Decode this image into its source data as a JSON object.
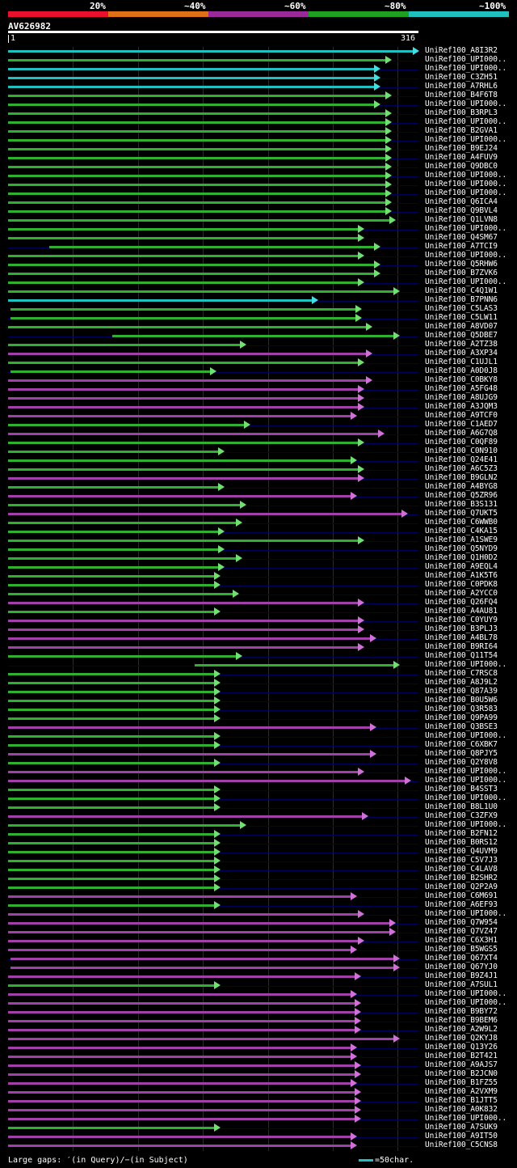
{
  "legend": {
    "segments": [
      {
        "label": "20%",
        "color": "#e8102c"
      },
      {
        "label": "~40%",
        "color": "#e07018"
      },
      {
        "label": "~60%",
        "color": "#9a2a9a"
      },
      {
        "label": "~80%",
        "color": "#20a020"
      },
      {
        "label": "~100%",
        "color": "#20c0c0"
      }
    ]
  },
  "query": {
    "title": "AV626982",
    "start": "1",
    "end": "316"
  },
  "footer": {
    "gaps": "Large gaps: ′(in Query)/−(in Subject)",
    "scale": "=50char."
  },
  "hits": [
    {
      "name": "UniRef100_A8I3R2",
      "start": 0,
      "end": 316,
      "color": "cyan"
    },
    {
      "name": "UniRef100_UPI000..",
      "start": 0,
      "end": 295,
      "color": "green"
    },
    {
      "name": "UniRef100_UPI000..",
      "start": 0,
      "end": 286,
      "color": "cyan"
    },
    {
      "name": "UniRef100_C3ZH51",
      "start": 0,
      "end": 286,
      "color": "cyan"
    },
    {
      "name": "UniRef100_A7RHL6",
      "start": 0,
      "end": 286,
      "color": "cyan"
    },
    {
      "name": "UniRef100_B4F6T8",
      "start": 0,
      "end": 295,
      "color": "green"
    },
    {
      "name": "UniRef100_UPI000..",
      "start": 0,
      "end": 286,
      "color": "green"
    },
    {
      "name": "UniRef100_B3RPL3",
      "start": 0,
      "end": 295,
      "color": "green"
    },
    {
      "name": "UniRef100_UPI000..",
      "start": 0,
      "end": 295,
      "color": "green"
    },
    {
      "name": "UniRef100_B2GVA1",
      "start": 0,
      "end": 295,
      "color": "green"
    },
    {
      "name": "UniRef100_UPI000..",
      "start": 0,
      "end": 295,
      "color": "green"
    },
    {
      "name": "UniRef100_B9EJ24",
      "start": 0,
      "end": 295,
      "color": "green"
    },
    {
      "name": "UniRef100_A4FUV9",
      "start": 0,
      "end": 295,
      "color": "green"
    },
    {
      "name": "UniRef100_Q9DBC0",
      "start": 0,
      "end": 295,
      "color": "green"
    },
    {
      "name": "UniRef100_UPI000..",
      "start": 0,
      "end": 295,
      "color": "green"
    },
    {
      "name": "UniRef100_UPI000..",
      "start": 0,
      "end": 295,
      "color": "green"
    },
    {
      "name": "UniRef100_UPI000..",
      "start": 0,
      "end": 295,
      "color": "green"
    },
    {
      "name": "UniRef100_Q6ICA4",
      "start": 0,
      "end": 295,
      "color": "green"
    },
    {
      "name": "UniRef100_Q9BVL4",
      "start": 0,
      "end": 295,
      "color": "green"
    },
    {
      "name": "UniRef100_Q1LVN8",
      "start": 0,
      "end": 298,
      "color": "green"
    },
    {
      "name": "UniRef100_UPI000..",
      "start": 0,
      "end": 274,
      "color": "green"
    },
    {
      "name": "UniRef100_Q4SM67",
      "start": 0,
      "end": 274,
      "color": "green"
    },
    {
      "name": "UniRef100_A7TCI9",
      "start": 32,
      "end": 286,
      "color": "green"
    },
    {
      "name": "UniRef100_UPI000..",
      "start": 0,
      "end": 274,
      "color": "green"
    },
    {
      "name": "UniRef100_Q5RHW6",
      "start": 0,
      "end": 286,
      "color": "green"
    },
    {
      "name": "UniRef100_B7ZVK6",
      "start": 0,
      "end": 286,
      "color": "green"
    },
    {
      "name": "UniRef100_UPI000..",
      "start": 0,
      "end": 274,
      "color": "green"
    },
    {
      "name": "UniRef100_C4Q1W1",
      "start": 0,
      "end": 301,
      "color": "green"
    },
    {
      "name": "UniRef100_B7PNN6",
      "start": 0,
      "end": 238,
      "color": "cyan"
    },
    {
      "name": "UniRef100_C5LAS3",
      "start": 2,
      "end": 272,
      "color": "green"
    },
    {
      "name": "UniRef100_C5LW11",
      "start": 2,
      "end": 272,
      "color": "green"
    },
    {
      "name": "UniRef100_A8VD07",
      "start": 0,
      "end": 280,
      "color": "green"
    },
    {
      "name": "UniRef100_Q5DBE7",
      "start": 80,
      "end": 301,
      "color": "green"
    },
    {
      "name": "UniRef100_A2TZ38",
      "start": 0,
      "end": 183,
      "color": "green"
    },
    {
      "name": "UniRef100_A3XP34",
      "start": 0,
      "end": 280,
      "color": "purple"
    },
    {
      "name": "UniRef100_C1UJL1",
      "start": 0,
      "end": 274,
      "color": "green"
    },
    {
      "name": "UniRef100_A0D0J8",
      "start": 2,
      "end": 160,
      "color": "green"
    },
    {
      "name": "UniRef100_C0BKY8",
      "start": 0,
      "end": 280,
      "color": "purple"
    },
    {
      "name": "UniRef100_A5FG48",
      "start": 0,
      "end": 274,
      "color": "purple"
    },
    {
      "name": "UniRef100_A8UJG9",
      "start": 0,
      "end": 274,
      "color": "purple"
    },
    {
      "name": "UniRef100_A3JQM3",
      "start": 0,
      "end": 274,
      "color": "purple"
    },
    {
      "name": "UniRef100_A9TCF0",
      "start": 0,
      "end": 268,
      "color": "purple"
    },
    {
      "name": "UniRef100_C1AED7",
      "start": 0,
      "end": 186,
      "color": "green"
    },
    {
      "name": "UniRef100_A6G7Q8",
      "start": 0,
      "end": 289,
      "color": "purple"
    },
    {
      "name": "UniRef100_C0QF89",
      "start": 0,
      "end": 274,
      "color": "green"
    },
    {
      "name": "UniRef100_C0N910",
      "start": 0,
      "end": 166,
      "color": "green"
    },
    {
      "name": "UniRef100_Q24E41",
      "start": 0,
      "end": 268,
      "color": "green"
    },
    {
      "name": "UniRef100_A6C5Z3",
      "start": 0,
      "end": 274,
      "color": "green"
    },
    {
      "name": "UniRef100_B9GLN2",
      "start": 0,
      "end": 274,
      "color": "purple"
    },
    {
      "name": "UniRef100_A4BYG8",
      "start": 0,
      "end": 166,
      "color": "green"
    },
    {
      "name": "UniRef100_Q5ZR96",
      "start": 0,
      "end": 268,
      "color": "purple"
    },
    {
      "name": "UniRef100_B3S131",
      "start": 0,
      "end": 183,
      "color": "green"
    },
    {
      "name": "UniRef100_Q7UKT5",
      "start": 0,
      "end": 307,
      "color": "purple"
    },
    {
      "name": "UniRef100_C6WWB0",
      "start": 0,
      "end": 180,
      "color": "green"
    },
    {
      "name": "UniRef100_C4KA15",
      "start": 0,
      "end": 166,
      "color": "green"
    },
    {
      "name": "UniRef100_A1SWE9",
      "start": 0,
      "end": 274,
      "color": "green"
    },
    {
      "name": "UniRef100_Q5NYD9",
      "start": 0,
      "end": 166,
      "color": "green"
    },
    {
      "name": "UniRef100_Q1H0D2",
      "start": 0,
      "end": 180,
      "color": "green"
    },
    {
      "name": "UniRef100_A9EQL4",
      "start": 0,
      "end": 166,
      "color": "green"
    },
    {
      "name": "UniRef100_A1K5T6",
      "start": 0,
      "end": 163,
      "color": "green"
    },
    {
      "name": "UniRef100_C0PDK8",
      "start": 0,
      "end": 163,
      "color": "green"
    },
    {
      "name": "UniRef100_A2YCC0",
      "start": 0,
      "end": 177,
      "color": "green"
    },
    {
      "name": "UniRef100_Q26FQ4",
      "start": 0,
      "end": 274,
      "color": "purple"
    },
    {
      "name": "UniRef100_A4AU81",
      "start": 0,
      "end": 163,
      "color": "green"
    },
    {
      "name": "UniRef100_C0YUY9",
      "start": 0,
      "end": 274,
      "color": "purple"
    },
    {
      "name": "UniRef100_B3PLJ3",
      "start": 0,
      "end": 274,
      "color": "purple"
    },
    {
      "name": "UniRef100_A4BL78",
      "start": 0,
      "end": 283,
      "color": "purple"
    },
    {
      "name": "UniRef100_B9RI64",
      "start": 0,
      "end": 274,
      "color": "purple"
    },
    {
      "name": "UniRef100_Q11T54",
      "start": 0,
      "end": 180,
      "color": "green"
    },
    {
      "name": "UniRef100_UPI000..",
      "start": 144,
      "end": 301,
      "color": "green"
    },
    {
      "name": "UniRef100_C7RSC8",
      "start": 0,
      "end": 163,
      "color": "green"
    },
    {
      "name": "UniRef100_A8J9L2",
      "start": 0,
      "end": 163,
      "color": "green"
    },
    {
      "name": "UniRef100_Q87A39",
      "start": 0,
      "end": 163,
      "color": "green"
    },
    {
      "name": "UniRef100_B0U5W6",
      "start": 0,
      "end": 163,
      "color": "green"
    },
    {
      "name": "UniRef100_Q3R583",
      "start": 0,
      "end": 163,
      "color": "green"
    },
    {
      "name": "UniRef100_Q9PA99",
      "start": 0,
      "end": 163,
      "color": "green"
    },
    {
      "name": "UniRef100_Q3BSE3",
      "start": 0,
      "end": 283,
      "color": "purple"
    },
    {
      "name": "UniRef100_UPI000..",
      "start": 0,
      "end": 163,
      "color": "green"
    },
    {
      "name": "UniRef100_C6XBK7",
      "start": 0,
      "end": 163,
      "color": "green"
    },
    {
      "name": "UniRef100_Q8PJY5",
      "start": 0,
      "end": 283,
      "color": "purple"
    },
    {
      "name": "UniRef100_Q2Y8V8",
      "start": 0,
      "end": 163,
      "color": "green"
    },
    {
      "name": "UniRef100_UPI000..",
      "start": 0,
      "end": 274,
      "color": "purple"
    },
    {
      "name": "UniRef100_UPI000..",
      "start": 0,
      "end": 310,
      "color": "purple"
    },
    {
      "name": "UniRef100_B4SST3",
      "start": 0,
      "end": 163,
      "color": "green"
    },
    {
      "name": "UniRef100_UPI000..",
      "start": 0,
      "end": 163,
      "color": "green"
    },
    {
      "name": "UniRef100_B8L1U0",
      "start": 0,
      "end": 163,
      "color": "green"
    },
    {
      "name": "UniRef100_C3ZFX9",
      "start": 0,
      "end": 277,
      "color": "purple"
    },
    {
      "name": "UniRef100_UPI000..",
      "start": 0,
      "end": 183,
      "color": "green"
    },
    {
      "name": "UniRef100_B2FN12",
      "start": 0,
      "end": 163,
      "color": "green"
    },
    {
      "name": "UniRef100_B0RS12",
      "start": 0,
      "end": 163,
      "color": "green"
    },
    {
      "name": "UniRef100_Q4UVM9",
      "start": 0,
      "end": 163,
      "color": "green"
    },
    {
      "name": "UniRef100_C5V7J3",
      "start": 0,
      "end": 163,
      "color": "green"
    },
    {
      "name": "UniRef100_C4LAV8",
      "start": 0,
      "end": 163,
      "color": "green"
    },
    {
      "name": "UniRef100_B2SHR2",
      "start": 0,
      "end": 163,
      "color": "green"
    },
    {
      "name": "UniRef100_Q2P2A9",
      "start": 0,
      "end": 163,
      "color": "green"
    },
    {
      "name": "UniRef100_C6M691",
      "start": 0,
      "end": 268,
      "color": "purple"
    },
    {
      "name": "UniRef100_A6EF93",
      "start": 0,
      "end": 163,
      "color": "green"
    },
    {
      "name": "UniRef100_UPI000..",
      "start": 0,
      "end": 274,
      "color": "purple"
    },
    {
      "name": "UniRef100_Q7W954",
      "start": 0,
      "end": 298,
      "color": "purple"
    },
    {
      "name": "UniRef100_Q7VZ47",
      "start": 0,
      "end": 298,
      "color": "purple"
    },
    {
      "name": "UniRef100_C6X3H1",
      "start": 0,
      "end": 274,
      "color": "purple"
    },
    {
      "name": "UniRef100_B5WGS5",
      "start": 0,
      "end": 268,
      "color": "purple"
    },
    {
      "name": "UniRef100_Q67XT4",
      "start": 2,
      "end": 301,
      "color": "purple"
    },
    {
      "name": "UniRef100_Q67YJ0",
      "start": 2,
      "end": 301,
      "color": "purple"
    },
    {
      "name": "UniRef100_B9Z4J1",
      "start": 0,
      "end": 271,
      "color": "purple"
    },
    {
      "name": "UniRef100_A7SUL1",
      "start": 0,
      "end": 163,
      "color": "green"
    },
    {
      "name": "UniRef100_UPI000..",
      "start": 0,
      "end": 268,
      "color": "purple"
    },
    {
      "name": "UniRef100_UPI000..",
      "start": 0,
      "end": 271,
      "color": "purple"
    },
    {
      "name": "UniRef100_B9BY72",
      "start": 0,
      "end": 271,
      "color": "purple"
    },
    {
      "name": "UniRef100_B9BEM6",
      "start": 0,
      "end": 271,
      "color": "purple"
    },
    {
      "name": "UniRef100_A2W9L2",
      "start": 0,
      "end": 271,
      "color": "purple"
    },
    {
      "name": "UniRef100_Q2KYJ8",
      "start": 0,
      "end": 301,
      "color": "purple"
    },
    {
      "name": "UniRef100_Q13Y26",
      "start": 0,
      "end": 268,
      "color": "purple"
    },
    {
      "name": "UniRef100_B2T421",
      "start": 0,
      "end": 268,
      "color": "purple"
    },
    {
      "name": "UniRef100_A9AJS7",
      "start": 0,
      "end": 271,
      "color": "purple"
    },
    {
      "name": "UniRef100_B2JCN0",
      "start": 0,
      "end": 271,
      "color": "purple"
    },
    {
      "name": "UniRef100_B1FZ55",
      "start": 0,
      "end": 268,
      "color": "purple"
    },
    {
      "name": "UniRef100_A2VXM9",
      "start": 0,
      "end": 271,
      "color": "purple"
    },
    {
      "name": "UniRef100_B1JTT5",
      "start": 0,
      "end": 271,
      "color": "purple"
    },
    {
      "name": "UniRef100_A0K832",
      "start": 0,
      "end": 271,
      "color": "purple"
    },
    {
      "name": "UniRef100_UPI000..",
      "start": 0,
      "end": 271,
      "color": "purple"
    },
    {
      "name": "UniRef100_A7SUK9",
      "start": 0,
      "end": 163,
      "color": "green"
    },
    {
      "name": "UniRef100_A9IT50",
      "start": 0,
      "end": 268,
      "color": "purple"
    },
    {
      "name": "UniRef100_C5CNS8",
      "start": 0,
      "end": 268,
      "color": "purple"
    }
  ],
  "colors": {
    "cyan": "#20c0c0",
    "green": "#30b030",
    "purple": "#a040a8",
    "arrow_cyan": "#40e0e0",
    "arrow_green": "#70e070",
    "arrow_purple": "#d070d8",
    "track": "#00005a"
  }
}
